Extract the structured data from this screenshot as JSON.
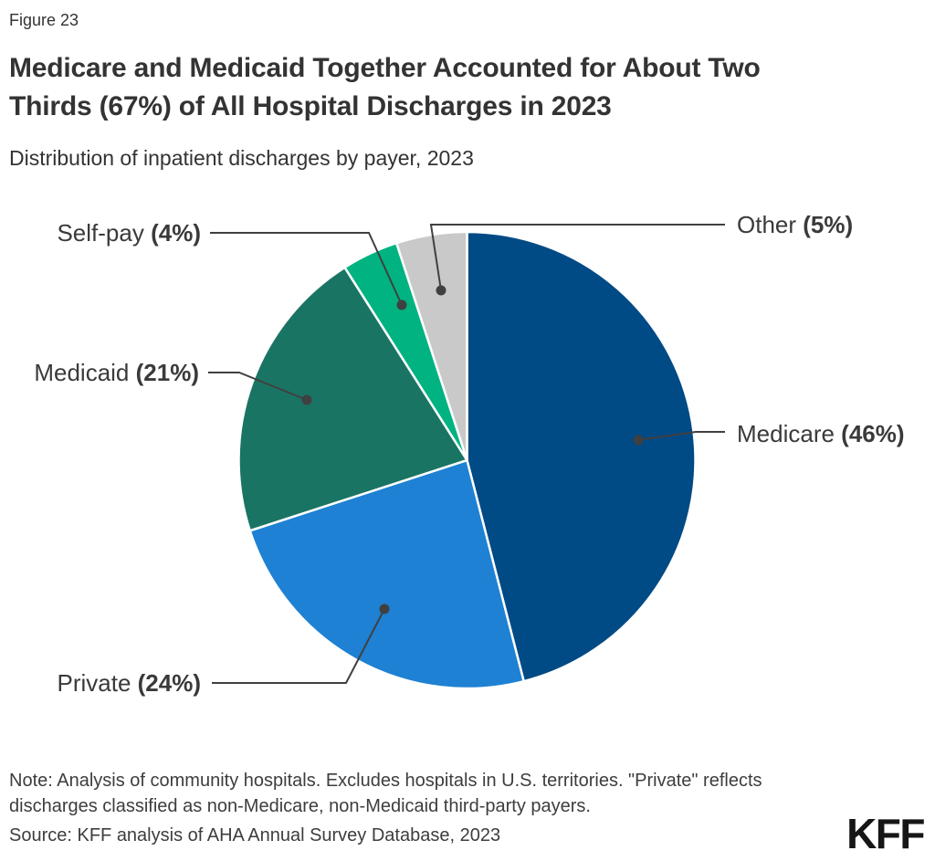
{
  "figure_label": "Figure 23",
  "title": {
    "line1": "Medicare and Medicaid Together Accounted for About Two",
    "line2": "Thirds (67%) of All Hospital Discharges in 2023"
  },
  "subtitle": "Distribution of inpatient discharges by payer, 2023",
  "chart_data": {
    "type": "pie",
    "title": "Distribution of inpatient discharges by payer, 2023",
    "start_angle": "12 o'clock, clockwise",
    "total": 100,
    "slices": [
      {
        "label": "Medicare",
        "value": 46,
        "pct_label": "(46%)",
        "color": "#004a85"
      },
      {
        "label": "Private",
        "value": 24,
        "pct_label": "(24%)",
        "color": "#1e81d3"
      },
      {
        "label": "Medicaid",
        "value": 21,
        "pct_label": "(21%)",
        "color": "#1a7463"
      },
      {
        "label": "Self-pay",
        "value": 4,
        "pct_label": "(4%)",
        "color": "#00b380"
      },
      {
        "label": "Other",
        "value": 5,
        "pct_label": "(5%)",
        "color": "#c9c9c9"
      }
    ],
    "slice_border_color": "#ffffff",
    "leader_color": "#404040",
    "legend_position": "callout-labels"
  },
  "footer": {
    "note_line1": "Note: Analysis of community hospitals. Excludes hospitals in U.S. territories. \"Private\" reflects",
    "note_line2": "discharges classified as non-Medicare, non-Medicaid third-party payers.",
    "source": "Source: KFF analysis of AHA Annual Survey Database, 2023",
    "logo": "KFF"
  }
}
